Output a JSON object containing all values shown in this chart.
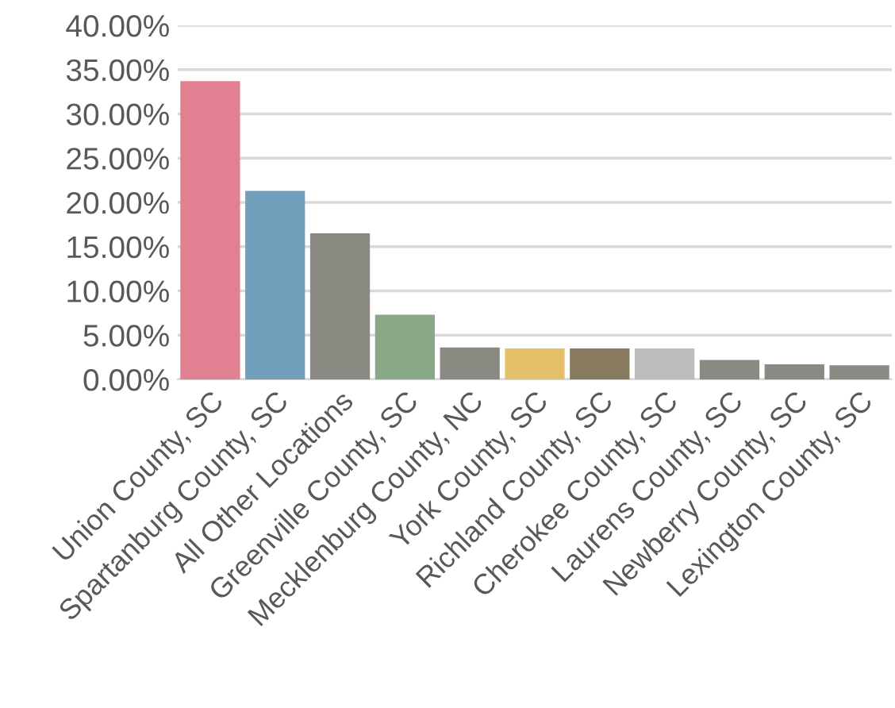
{
  "chart_data": {
    "type": "bar",
    "categories": [
      "Union County, SC",
      "Spartanburg County, SC",
      "All Other Locations",
      "Greenville County, SC",
      "Mecklenburg County, NC",
      "York County, SC",
      "Richland County, SC",
      "Cherokee County, SC",
      "Laurens County, SC",
      "Newberry County, SC",
      "Lexington County, SC"
    ],
    "values": [
      33.7,
      21.3,
      16.5,
      7.3,
      3.6,
      3.5,
      3.5,
      3.5,
      2.2,
      1.7,
      1.6
    ],
    "colors": [
      "#e08090",
      "#72a0bc",
      "#8a8a82",
      "#88a888",
      "#8a8a82",
      "#e4c068",
      "#877a5e",
      "#bdbdbd",
      "#8a8a82",
      "#8a8a82",
      "#8a8a82"
    ],
    "ylim": [
      0,
      40
    ],
    "yticks": [
      {
        "value": 0,
        "label": "0.00%"
      },
      {
        "value": 5,
        "label": "5.00%"
      },
      {
        "value": 10,
        "label": "10.00%"
      },
      {
        "value": 15,
        "label": "15.00%"
      },
      {
        "value": 20,
        "label": "20.00%"
      },
      {
        "value": 25,
        "label": "25.00%"
      },
      {
        "value": 30,
        "label": "30.00%"
      },
      {
        "value": 35,
        "label": "35.00%"
      },
      {
        "value": 40,
        "label": "40.00%"
      }
    ],
    "grid": "y",
    "legend": false
  }
}
